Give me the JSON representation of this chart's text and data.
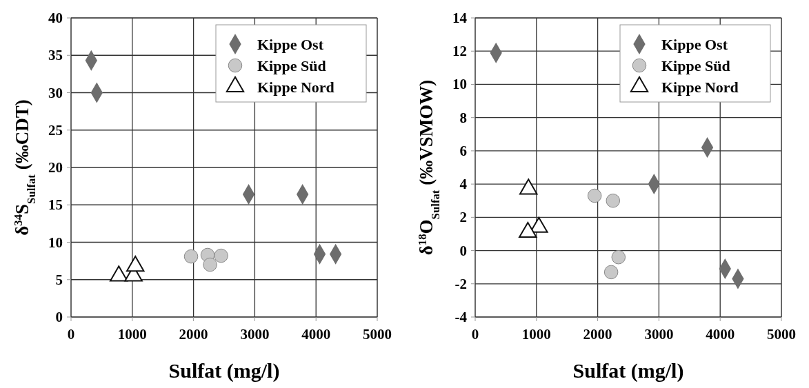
{
  "chart_data": [
    {
      "type": "scatter",
      "xlabel": "Sulfat (mg/l)",
      "ylabel": "δ$^{34}$S$_{Sulfat}$ (‰CDT)",
      "xlim": [
        0,
        5000
      ],
      "xticks": [
        0,
        1000,
        2000,
        3000,
        4000,
        5000
      ],
      "ylim": [
        0,
        40
      ],
      "yticks": [
        0,
        5,
        10,
        15,
        20,
        25,
        30,
        35,
        40
      ],
      "grid": true,
      "legend": "top right",
      "series": [
        {
          "name": "Kippe Ost",
          "color": "#6d6d6d",
          "marker": "diamond",
          "x": [
            330,
            420,
            2900,
            3780,
            4060,
            4320
          ],
          "values": [
            34.3,
            30.0,
            16.4,
            16.4,
            8.4,
            8.4
          ]
        },
        {
          "name": "Kippe Süd",
          "color": "#c8c8c8",
          "marker": "circle",
          "x": [
            1960,
            2230,
            2450,
            2270
          ],
          "values": [
            8.1,
            8.3,
            8.2,
            7.0
          ]
        },
        {
          "name": "Kippe Nord",
          "color": "#ffffff",
          "marker": "triangle",
          "x": [
            780,
            1020,
            1050
          ],
          "values": [
            5.5,
            5.5,
            6.8
          ]
        }
      ]
    },
    {
      "type": "scatter",
      "xlabel": "Sulfat (mg/l)",
      "ylabel": "δ$^{18}$O$_{Sulfat}$ (‰VSMOW)",
      "xlim": [
        0,
        5000
      ],
      "xticks": [
        0,
        1000,
        2000,
        3000,
        4000,
        5000
      ],
      "ylim": [
        -4,
        14
      ],
      "yticks": [
        -4,
        -2,
        0,
        2,
        4,
        6,
        8,
        10,
        12,
        14
      ],
      "grid": true,
      "legend": "top right",
      "series": [
        {
          "name": "Kippe Ost",
          "color": "#6d6d6d",
          "marker": "diamond",
          "x": [
            340,
            2920,
            3790,
            4080,
            4290
          ],
          "values": [
            11.9,
            4.0,
            6.2,
            -1.1,
            -1.7
          ]
        },
        {
          "name": "Kippe Süd",
          "color": "#c8c8c8",
          "marker": "circle",
          "x": [
            1950,
            2250,
            2340,
            2220
          ],
          "values": [
            3.3,
            3.0,
            -0.4,
            -1.3
          ]
        },
        {
          "name": "Kippe Nord",
          "color": "#ffffff",
          "marker": "triangle",
          "x": [
            870,
            1040,
            860
          ],
          "values": [
            3.7,
            1.4,
            1.1
          ]
        }
      ]
    }
  ]
}
